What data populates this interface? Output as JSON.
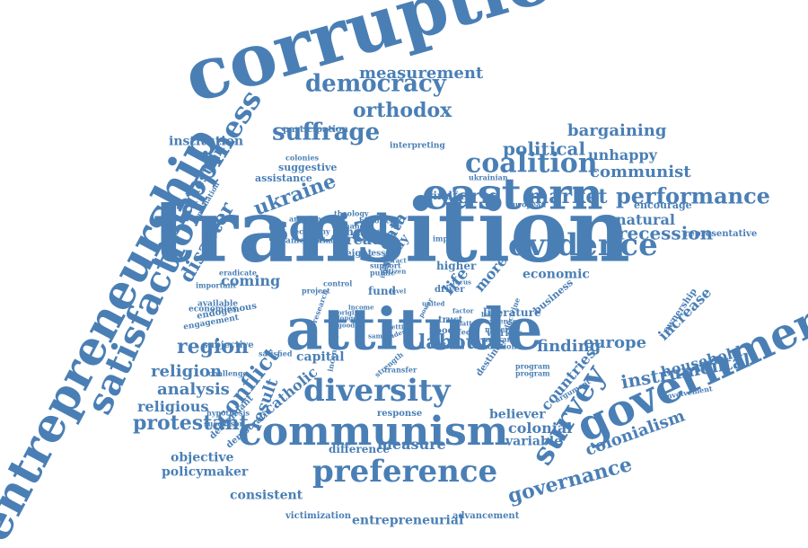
{
  "theme": {
    "word_color": "#4a7fb5",
    "background": "#ffffff"
  },
  "words": [
    "transition",
    "corruption",
    "attitude",
    "entrepreneurship",
    "social",
    "eastern",
    "evidence",
    "government",
    "communism",
    "satisfaction",
    "happiness",
    "diversity",
    "preference",
    "survey",
    "instrumental",
    "democracy",
    "measurement",
    "suffrage",
    "orthodox",
    "coalition",
    "political",
    "bargaining",
    "communist",
    "market",
    "performance",
    "world",
    "ukraine",
    "unhappy",
    "recession",
    "natural",
    "conflict",
    "protestant",
    "region",
    "religion",
    "analysis",
    "religious",
    "labour",
    "europe",
    "finding",
    "colonialism",
    "governance",
    "household",
    "increase",
    "countries",
    "result",
    "catholic",
    "colonial",
    "variable",
    "believer",
    "measure",
    "difference",
    "entrepreneurial",
    "consistent",
    "policymaker",
    "objective",
    "coming",
    "institution",
    "question",
    "disaster",
    "data",
    "great",
    "study",
    "life",
    "more",
    "economic",
    "literature",
    "business",
    "capital",
    "representative",
    "encourage",
    "suggestive",
    "assistance",
    "windfall",
    "participation",
    "interpreting",
    "ukrainian",
    "european",
    "explanation",
    "theology",
    "historical",
    "change",
    "american",
    "economy",
    "optimism",
    "lesson",
    "higher",
    "fund",
    "worker",
    "trust",
    "driver",
    "flood",
    "addition",
    "material",
    "expense",
    "migrant",
    "doctrine",
    "involvement",
    "argument",
    "ownership",
    "victimization",
    "advancement",
    "hypothesis",
    "response",
    "successor",
    "democratic",
    "descendant",
    "incentive",
    "strength",
    "transfer",
    "destined",
    "program",
    "subjective",
    "satisfied",
    "challenge",
    "engagement",
    "endogenous",
    "economies",
    "available",
    "important",
    "eradicate",
    "support",
    "public",
    "height",
    "america",
    "colonies",
    "financial",
    "program",
    "control",
    "project",
    "research",
    "citizen",
    "impact",
    "attract",
    "individual",
    "affect",
    "origin",
    "happy",
    "good",
    "longer",
    "income",
    "factor",
    "setting",
    "level",
    "power",
    "united",
    "latter",
    "focus",
    "agent",
    "sample",
    "gender"
  ]
}
